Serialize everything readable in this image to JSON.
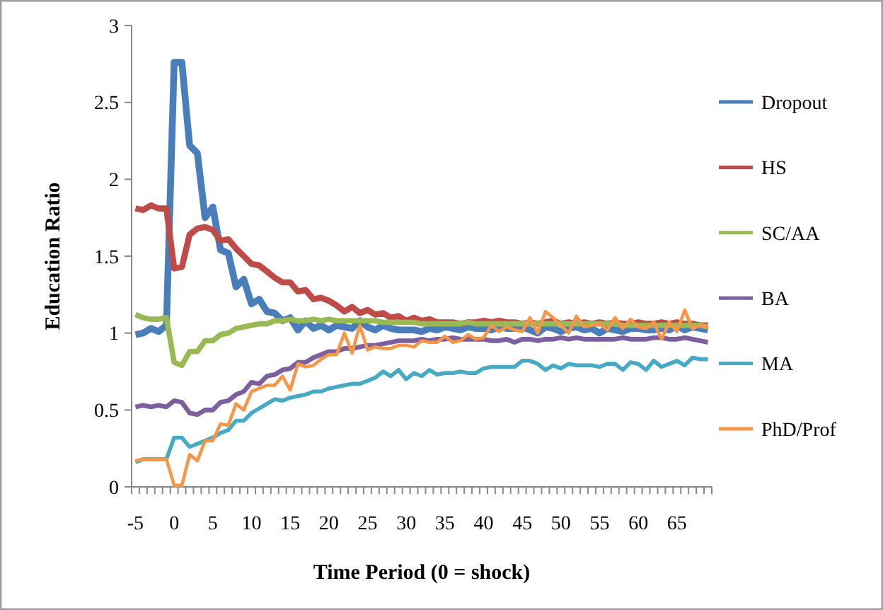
{
  "chart_data": {
    "type": "line",
    "xlabel": "Time Period (0 = shock)",
    "ylabel": "Education Ratio",
    "categories": [
      "-5",
      null,
      null,
      null,
      null,
      "0",
      null,
      null,
      null,
      null,
      "5",
      null,
      null,
      null,
      null,
      "10",
      null,
      null,
      null,
      null,
      "15",
      null,
      null,
      null,
      null,
      "20",
      null,
      null,
      null,
      null,
      "25",
      null,
      null,
      null,
      null,
      "30",
      null,
      null,
      null,
      null,
      "35",
      null,
      null,
      null,
      null,
      "40",
      null,
      null,
      null,
      null,
      "45",
      null,
      null,
      null,
      null,
      "50",
      null,
      null,
      null,
      null,
      "55",
      null,
      null,
      null,
      null,
      "60",
      null,
      null,
      null,
      null,
      "65",
      null,
      null,
      null,
      null
    ],
    "series": [
      {
        "name": "Dropout",
        "color": "#4a7ebb",
        "values": [
          0.99,
          1.0,
          1.03,
          1.01,
          1.05,
          2.76,
          2.76,
          2.22,
          2.17,
          1.75,
          1.82,
          1.54,
          1.52,
          1.3,
          1.35,
          1.19,
          1.22,
          1.14,
          1.13,
          1.08,
          1.1,
          1.02,
          1.08,
          1.03,
          1.05,
          1.02,
          1.05,
          1.04,
          1.03,
          1.08,
          1.04,
          1.02,
          1.05,
          1.03,
          1.02,
          1.02,
          1.02,
          1.01,
          1.03,
          1.02,
          1.04,
          1.03,
          1.02,
          1.04,
          1.03,
          1.03,
          1.02,
          1.04,
          1.03,
          1.03,
          1.04,
          1.02,
          1.0,
          1.04,
          1.03,
          1.01,
          1.03,
          1.04,
          1.02,
          1.03,
          1.0,
          1.03,
          1.02,
          1.01,
          1.03,
          1.03,
          1.02,
          1.02,
          1.03,
          1.02,
          1.05,
          1.02,
          1.04,
          1.03,
          1.02
        ]
      },
      {
        "name": "HS",
        "color": "#be4b48",
        "values": [
          1.81,
          1.8,
          1.83,
          1.81,
          1.81,
          1.42,
          1.43,
          1.64,
          1.68,
          1.69,
          1.67,
          1.6,
          1.61,
          1.55,
          1.5,
          1.45,
          1.44,
          1.4,
          1.36,
          1.33,
          1.33,
          1.27,
          1.28,
          1.22,
          1.23,
          1.21,
          1.18,
          1.14,
          1.17,
          1.13,
          1.15,
          1.12,
          1.13,
          1.1,
          1.11,
          1.08,
          1.1,
          1.08,
          1.09,
          1.07,
          1.07,
          1.07,
          1.06,
          1.07,
          1.07,
          1.08,
          1.07,
          1.08,
          1.07,
          1.07,
          1.06,
          1.07,
          1.06,
          1.07,
          1.08,
          1.06,
          1.07,
          1.06,
          1.07,
          1.06,
          1.07,
          1.06,
          1.07,
          1.06,
          1.06,
          1.07,
          1.06,
          1.06,
          1.07,
          1.06,
          1.07,
          1.06,
          1.06,
          1.05,
          1.05
        ]
      },
      {
        "name": "SC/AA",
        "color": "#98b954",
        "values": [
          1.12,
          1.1,
          1.09,
          1.09,
          1.1,
          0.81,
          0.79,
          0.88,
          0.88,
          0.95,
          0.95,
          0.99,
          1.0,
          1.03,
          1.04,
          1.05,
          1.06,
          1.06,
          1.08,
          1.08,
          1.09,
          1.08,
          1.08,
          1.09,
          1.08,
          1.09,
          1.08,
          1.08,
          1.08,
          1.08,
          1.08,
          1.08,
          1.07,
          1.07,
          1.07,
          1.07,
          1.07,
          1.06,
          1.06,
          1.06,
          1.06,
          1.06,
          1.06,
          1.07,
          1.06,
          1.06,
          1.06,
          1.06,
          1.06,
          1.06,
          1.06,
          1.06,
          1.06,
          1.06,
          1.06,
          1.06,
          1.06,
          1.06,
          1.06,
          1.06,
          1.06,
          1.06,
          1.06,
          1.05,
          1.05,
          1.05,
          1.05,
          1.05,
          1.05,
          1.05,
          1.05,
          1.05,
          1.05,
          1.05,
          1.04
        ]
      },
      {
        "name": "BA",
        "color": "#7d5fa0",
        "values": [
          0.52,
          0.53,
          0.52,
          0.53,
          0.52,
          0.56,
          0.55,
          0.48,
          0.47,
          0.5,
          0.5,
          0.55,
          0.56,
          0.6,
          0.62,
          0.68,
          0.67,
          0.72,
          0.73,
          0.76,
          0.77,
          0.81,
          0.81,
          0.84,
          0.86,
          0.88,
          0.88,
          0.9,
          0.9,
          0.91,
          0.92,
          0.92,
          0.93,
          0.94,
          0.95,
          0.95,
          0.95,
          0.96,
          0.95,
          0.96,
          0.96,
          0.97,
          0.96,
          0.96,
          0.96,
          0.96,
          0.95,
          0.95,
          0.96,
          0.94,
          0.96,
          0.96,
          0.95,
          0.96,
          0.96,
          0.97,
          0.96,
          0.97,
          0.96,
          0.96,
          0.96,
          0.96,
          0.96,
          0.97,
          0.96,
          0.96,
          0.96,
          0.97,
          0.97,
          0.96,
          0.96,
          0.97,
          0.96,
          0.95,
          0.94
        ]
      },
      {
        "name": "MA",
        "color": "#46aac5",
        "values": [
          0.16,
          0.18,
          0.18,
          0.18,
          0.18,
          0.32,
          0.32,
          0.26,
          0.28,
          0.3,
          0.32,
          0.35,
          0.37,
          0.43,
          0.43,
          0.48,
          0.51,
          0.54,
          0.57,
          0.56,
          0.58,
          0.59,
          0.6,
          0.62,
          0.62,
          0.64,
          0.65,
          0.66,
          0.67,
          0.67,
          0.69,
          0.71,
          0.75,
          0.72,
          0.76,
          0.7,
          0.74,
          0.72,
          0.76,
          0.73,
          0.74,
          0.74,
          0.75,
          0.74,
          0.74,
          0.77,
          0.78,
          0.78,
          0.78,
          0.78,
          0.82,
          0.82,
          0.8,
          0.76,
          0.79,
          0.77,
          0.8,
          0.79,
          0.79,
          0.79,
          0.78,
          0.8,
          0.8,
          0.76,
          0.81,
          0.8,
          0.76,
          0.82,
          0.78,
          0.8,
          0.82,
          0.79,
          0.84,
          0.83,
          0.83
        ]
      },
      {
        "name": "PhD/Prof",
        "color": "#f79646",
        "values": [
          0.17,
          0.18,
          0.18,
          0.18,
          0.18,
          0.01,
          0.01,
          0.21,
          0.17,
          0.3,
          0.3,
          0.41,
          0.4,
          0.54,
          0.5,
          0.62,
          0.64,
          0.66,
          0.66,
          0.72,
          0.63,
          0.8,
          0.78,
          0.79,
          0.83,
          0.86,
          0.86,
          1.0,
          0.87,
          1.05,
          0.89,
          0.91,
          0.9,
          0.9,
          0.92,
          0.92,
          0.91,
          0.95,
          0.94,
          0.94,
          0.98,
          0.94,
          0.95,
          0.99,
          0.96,
          0.97,
          1.05,
          1.01,
          1.04,
          1.02,
          1.01,
          1.1,
          1.0,
          1.14,
          1.1,
          1.05,
          1.0,
          1.11,
          1.04,
          1.05,
          1.06,
          1.02,
          1.1,
          1.03,
          1.09,
          1.04,
          1.03,
          1.07,
          0.96,
          1.07,
          1.01,
          1.15,
          1.03,
          1.05,
          1.04
        ]
      }
    ],
    "ylim": [
      0,
      3
    ],
    "yticks": [
      0,
      0.5,
      1,
      1.5,
      2,
      2.5,
      3
    ],
    "grid": false,
    "legend": "right",
    "marker": "none",
    "line_style": "solid"
  }
}
